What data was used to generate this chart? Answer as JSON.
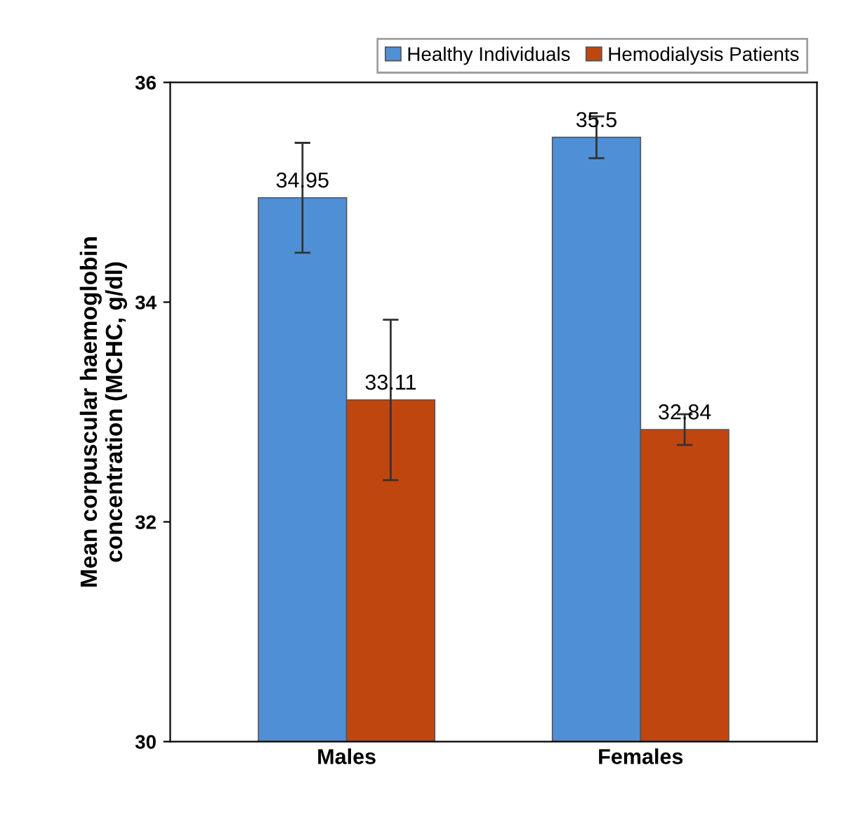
{
  "chart_data": {
    "type": "bar",
    "ylabel": "Mean corpuscular haemoglobin\nconcentration (MCHC, g/dl)",
    "categories": [
      "Males",
      "Females"
    ],
    "series": [
      {
        "name": "Healthy Individuals",
        "color": "#4f8fd6",
        "values": [
          34.95,
          35.5
        ],
        "errors": [
          0.5,
          0.19
        ]
      },
      {
        "name": "Hemodialysis Patients",
        "color": "#c0460f",
        "values": [
          33.11,
          32.84
        ],
        "errors": [
          0.73,
          0.14
        ]
      }
    ],
    "ylim": [
      30,
      36
    ],
    "yticks": [
      30,
      32,
      34,
      36
    ],
    "data_labels": true,
    "legend": "top right",
    "grid": false
  }
}
